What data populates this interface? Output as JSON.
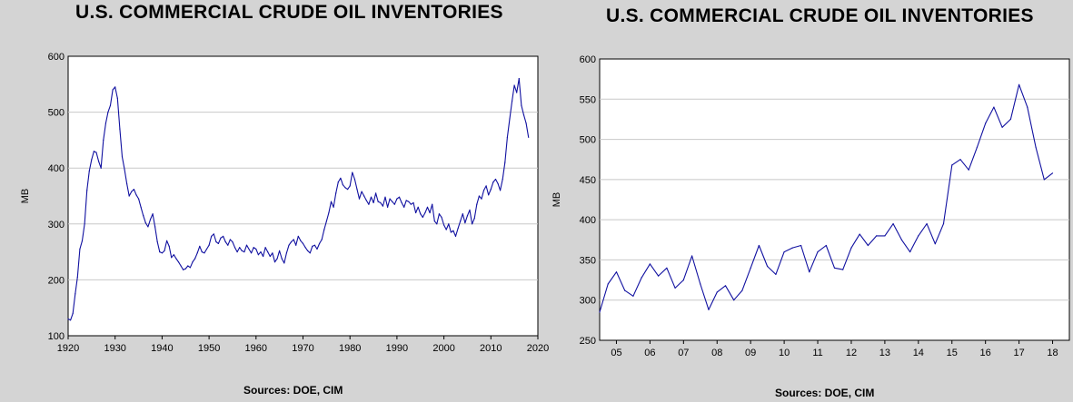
{
  "colors": {
    "series": "#1010a0",
    "plot_bg": "#ffffff",
    "gridline": "#c8c8c8",
    "page_bg": "#d4d4d4"
  },
  "chart_data": [
    {
      "type": "line",
      "title": "U.S. COMMERCIAL CRUDE OIL INVENTORIES",
      "ylabel": "MB",
      "xlabel": "",
      "source": "Sources:  DOE, CIM",
      "xlim": [
        1920,
        2020
      ],
      "ylim": [
        100,
        600
      ],
      "x_ticks": [
        1920,
        1930,
        1940,
        1950,
        1960,
        1970,
        1980,
        1990,
        2000,
        2010,
        2020
      ],
      "x_tick_labels": [
        "1920",
        "1930",
        "1940",
        "1950",
        "1960",
        "1970",
        "1980",
        "1990",
        "2000",
        "2010",
        "2020"
      ],
      "y_ticks": [
        100,
        200,
        300,
        400,
        500,
        600
      ],
      "y_tick_labels": [
        "100",
        "200",
        "300",
        "400",
        "500",
        "600"
      ],
      "grid": true,
      "series": [
        {
          "x": [
            1920,
            1920.5,
            1921,
            1921.5,
            1922,
            1922.5,
            1923,
            1923.5,
            1924,
            1924.5,
            1925,
            1925.5,
            1926,
            1926.5,
            1927,
            1927.5,
            1928,
            1928.5,
            1929,
            1929.5,
            1930,
            1930.5,
            1931,
            1931.5,
            1932,
            1932.5,
            1933,
            1933.5,
            1934,
            1934.5,
            1935,
            1935.5,
            1936,
            1936.5,
            1937,
            1937.5,
            1938,
            1938.5,
            1939,
            1939.5,
            1940,
            1940.5,
            1941,
            1941.5,
            1942,
            1942.5,
            1943,
            1943.5,
            1944,
            1944.5,
            1945,
            1945.5,
            1946,
            1946.5,
            1947,
            1947.5,
            1948,
            1948.5,
            1949,
            1949.5,
            1950,
            1950.5,
            1951,
            1951.5,
            1952,
            1952.5,
            1953,
            1953.5,
            1954,
            1954.5,
            1955,
            1955.5,
            1956,
            1956.5,
            1957,
            1957.5,
            1958,
            1958.5,
            1959,
            1959.5,
            1960,
            1960.5,
            1961,
            1961.5,
            1962,
            1962.5,
            1963,
            1963.5,
            1964,
            1964.5,
            1965,
            1965.5,
            1966,
            1966.5,
            1967,
            1967.5,
            1968,
            1968.5,
            1969,
            1969.5,
            1970,
            1970.5,
            1971,
            1971.5,
            1972,
            1972.5,
            1973,
            1973.5,
            1974,
            1974.5,
            1975,
            1975.5,
            1976,
            1976.5,
            1977,
            1977.5,
            1978,
            1978.5,
            1979,
            1979.5,
            1980,
            1980.5,
            1981,
            1981.5,
            1982,
            1982.5,
            1983,
            1983.5,
            1984,
            1984.5,
            1985,
            1985.5,
            1986,
            1986.5,
            1987,
            1987.5,
            1988,
            1988.5,
            1989,
            1989.5,
            1990,
            1990.5,
            1991,
            1991.5,
            1992,
            1992.5,
            1993,
            1993.5,
            1994,
            1994.5,
            1995,
            1995.5,
            1996,
            1996.5,
            1997,
            1997.5,
            1998,
            1998.5,
            1999,
            1999.5,
            2000,
            2000.5,
            2001,
            2001.5,
            2002,
            2002.5,
            2003,
            2003.5,
            2004,
            2004.5,
            2005,
            2005.5,
            2006,
            2006.5,
            2007,
            2007.5,
            2008,
            2008.5,
            2009,
            2009.5,
            2010,
            2010.5,
            2011,
            2011.5,
            2012,
            2012.5,
            2013,
            2013.5,
            2014,
            2014.5,
            2015,
            2015.5,
            2016,
            2016.5,
            2017,
            2017.5,
            2018
          ],
          "values": [
            130,
            128,
            140,
            175,
            205,
            255,
            270,
            300,
            360,
            395,
            415,
            430,
            428,
            412,
            400,
            450,
            480,
            500,
            512,
            540,
            545,
            525,
            470,
            420,
            398,
            372,
            350,
            358,
            362,
            352,
            345,
            330,
            315,
            302,
            295,
            308,
            318,
            295,
            268,
            250,
            248,
            252,
            270,
            260,
            240,
            245,
            238,
            232,
            225,
            218,
            220,
            225,
            222,
            232,
            238,
            248,
            260,
            250,
            248,
            255,
            262,
            278,
            282,
            268,
            265,
            275,
            278,
            268,
            262,
            272,
            268,
            258,
            250,
            258,
            252,
            250,
            262,
            255,
            248,
            258,
            255,
            245,
            250,
            242,
            258,
            250,
            242,
            248,
            232,
            238,
            252,
            238,
            230,
            248,
            262,
            268,
            272,
            262,
            278,
            270,
            265,
            258,
            252,
            248,
            260,
            262,
            255,
            265,
            272,
            290,
            305,
            320,
            340,
            330,
            355,
            375,
            382,
            370,
            365,
            362,
            368,
            392,
            380,
            362,
            345,
            358,
            350,
            342,
            335,
            348,
            338,
            355,
            340,
            338,
            332,
            348,
            330,
            345,
            340,
            335,
            345,
            348,
            338,
            330,
            342,
            340,
            335,
            338,
            320,
            330,
            318,
            312,
            320,
            330,
            320,
            335,
            305,
            300,
            318,
            312,
            298,
            290,
            300,
            285,
            288,
            278,
            292,
            305,
            318,
            302,
            315,
            325,
            300,
            310,
            335,
            350,
            345,
            360,
            368,
            352,
            362,
            375,
            380,
            372,
            360,
            380,
            410,
            455,
            488,
            520,
            548,
            535,
            560,
            512,
            495,
            480,
            455
          ]
        }
      ]
    },
    {
      "type": "line",
      "title": "U.S. COMMERCIAL CRUDE OIL INVENTORIES",
      "ylabel": "MB",
      "xlabel": "",
      "source": "Sources:  DOE, CIM",
      "xlim": [
        2004.5,
        2018.5
      ],
      "ylim": [
        250,
        600
      ],
      "x_ticks": [
        2005,
        2006,
        2007,
        2008,
        2009,
        2010,
        2011,
        2012,
        2013,
        2014,
        2015,
        2016,
        2017,
        2018
      ],
      "x_tick_labels": [
        "05",
        "06",
        "07",
        "08",
        "09",
        "10",
        "11",
        "12",
        "13",
        "14",
        "15",
        "16",
        "17",
        "18"
      ],
      "y_ticks": [
        250,
        300,
        350,
        400,
        450,
        500,
        550,
        600
      ],
      "y_tick_labels": [
        "250",
        "300",
        "350",
        "400",
        "450",
        "500",
        "550",
        "600"
      ],
      "grid": true,
      "series": [
        {
          "x": [
            2004.5,
            2004.75,
            2005.0,
            2005.25,
            2005.5,
            2005.75,
            2006.0,
            2006.25,
            2006.5,
            2006.75,
            2007.0,
            2007.25,
            2007.5,
            2007.75,
            2008.0,
            2008.25,
            2008.5,
            2008.75,
            2009.0,
            2009.25,
            2009.5,
            2009.75,
            2010.0,
            2010.25,
            2010.5,
            2010.75,
            2011.0,
            2011.25,
            2011.5,
            2011.75,
            2012.0,
            2012.25,
            2012.5,
            2012.75,
            2013.0,
            2013.25,
            2013.5,
            2013.75,
            2014.0,
            2014.25,
            2014.5,
            2014.75,
            2015.0,
            2015.25,
            2015.5,
            2015.75,
            2016.0,
            2016.25,
            2016.5,
            2016.75,
            2017.0,
            2017.25,
            2017.5,
            2017.75,
            2018.0
          ],
          "values": [
            285,
            320,
            335,
            312,
            305,
            328,
            345,
            330,
            340,
            315,
            325,
            355,
            320,
            288,
            310,
            318,
            300,
            312,
            340,
            368,
            342,
            332,
            360,
            365,
            368,
            335,
            360,
            368,
            340,
            338,
            365,
            382,
            368,
            380,
            380,
            395,
            375,
            360,
            380,
            395,
            370,
            395,
            468,
            475,
            462,
            490,
            520,
            540,
            515,
            525,
            568,
            540,
            490,
            450,
            458
          ]
        }
      ]
    }
  ]
}
